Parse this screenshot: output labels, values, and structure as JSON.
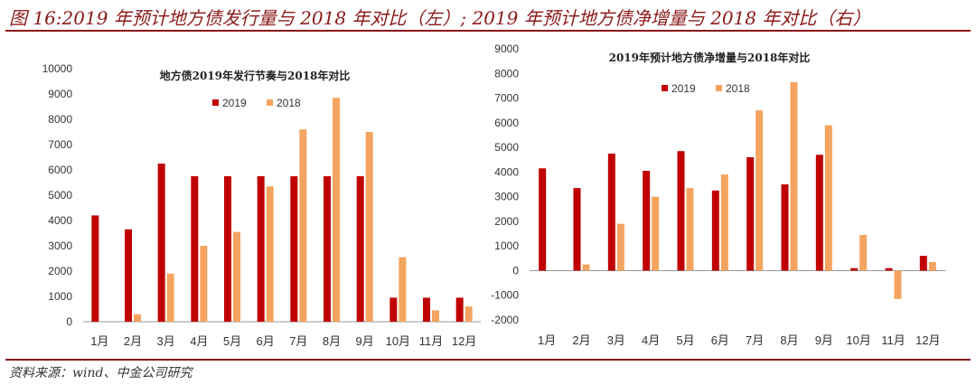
{
  "figure_title": "图 16:2019 年预计地方债发行量与 2018 年对比（左）; 2019 年预计地方债净增量与 2018 年对比（右）",
  "source": "资料来源：wind、中金公司研究",
  "colors": {
    "series_2019": "#c00000",
    "series_2018": "#f4a460",
    "rule": "#8b1a1a"
  },
  "chart_data": [
    {
      "type": "bar",
      "title": "地方债2019年发行节奏与2018年对比",
      "categories": [
        "1月",
        "2月",
        "3月",
        "4月",
        "5月",
        "6月",
        "7月",
        "8月",
        "9月",
        "10月",
        "11月",
        "12月"
      ],
      "series": [
        {
          "name": "2019",
          "values": [
            4200,
            3650,
            6250,
            5750,
            5750,
            5750,
            5750,
            5750,
            5750,
            950,
            950,
            950
          ]
        },
        {
          "name": "2018",
          "values": [
            0,
            300,
            1900,
            3000,
            3550,
            5350,
            7600,
            8850,
            7500,
            2550,
            450,
            600
          ]
        }
      ],
      "ylim": [
        0,
        10000
      ],
      "yticks": [
        0,
        1000,
        2000,
        3000,
        4000,
        5000,
        6000,
        7000,
        8000,
        9000,
        10000
      ],
      "xlabel": "",
      "ylabel": "",
      "legend": "top-center",
      "grid": false
    },
    {
      "type": "bar",
      "title": "2019年预计地方债净增量与2018年对比",
      "categories": [
        "1月",
        "2月",
        "3月",
        "4月",
        "5月",
        "6月",
        "7月",
        "8月",
        "9月",
        "10月",
        "11月",
        "12月"
      ],
      "series": [
        {
          "name": "2019",
          "values": [
            4150,
            3350,
            4750,
            4050,
            4850,
            3250,
            4600,
            3500,
            4700,
            100,
            100,
            600
          ]
        },
        {
          "name": "2018",
          "values": [
            0,
            250,
            1900,
            3000,
            3350,
            3900,
            6500,
            7650,
            5900,
            1450,
            -1150,
            350
          ]
        }
      ],
      "ylim": [
        -2000,
        9000
      ],
      "yticks": [
        -2000,
        -1000,
        0,
        1000,
        2000,
        3000,
        4000,
        5000,
        6000,
        7000,
        8000,
        9000
      ],
      "xlabel": "",
      "ylabel": "",
      "legend": "top-center",
      "grid": false
    }
  ]
}
